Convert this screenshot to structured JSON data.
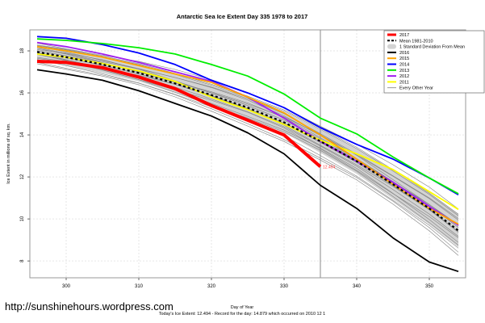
{
  "chart_data": {
    "type": "line",
    "title": "Antarctic Sea Ice Extent Day 335 1978 to 2017",
    "xlabel": "Day of Year",
    "ylabel": "Ice Extent in millions of sq. km.",
    "xlim": [
      295,
      355
    ],
    "ylim": [
      7.2,
      19.0
    ],
    "xticks": [
      300,
      310,
      320,
      330,
      340,
      350
    ],
    "yticks": [
      8,
      10,
      12,
      14,
      16,
      18
    ],
    "grid": true,
    "vline_day": 335,
    "current_label": "12.494",
    "legend_position": "top-right",
    "legend": [
      {
        "label": "2017",
        "color": "#ff0000",
        "style": "thick"
      },
      {
        "label": "Mean 1981-2010",
        "color": "#000000",
        "style": "dashed"
      },
      {
        "label": "1 Standard Deviation From Mean",
        "color": "#d3d3d3",
        "style": "band"
      },
      {
        "label": "2016",
        "color": "#000000",
        "style": "solid"
      },
      {
        "label": "2015",
        "color": "#ffa500",
        "style": "solid"
      },
      {
        "label": "2014",
        "color": "#0000ff",
        "style": "solid"
      },
      {
        "label": "2013",
        "color": "#00ee00",
        "style": "solid"
      },
      {
        "label": "2012",
        "color": "#a020f0",
        "style": "solid"
      },
      {
        "label": "2011",
        "color": "#ffff00",
        "style": "solid"
      },
      {
        "label": "Every Other Year",
        "color": "#808080",
        "style": "thin"
      }
    ],
    "x": [
      296,
      300,
      305,
      310,
      315,
      320,
      325,
      330,
      335,
      340,
      345,
      350,
      354
    ],
    "series": [
      {
        "name": "2017",
        "color": "#ff0000",
        "values": [
          17.5,
          17.45,
          17.2,
          16.75,
          16.2,
          15.4,
          14.7,
          14.0,
          12.49,
          null,
          null,
          null,
          null
        ]
      },
      {
        "name": "Mean 1981-2010",
        "color": "#000000",
        "values": [
          17.95,
          17.7,
          17.35,
          16.95,
          16.45,
          15.9,
          15.3,
          14.6,
          13.7,
          12.75,
          11.65,
          10.5,
          9.45
        ]
      },
      {
        "name": "2016",
        "color": "#000000",
        "values": [
          17.1,
          16.9,
          16.6,
          16.1,
          15.5,
          14.9,
          14.1,
          13.1,
          11.6,
          10.5,
          9.1,
          7.95,
          7.5
        ]
      },
      {
        "name": "2015",
        "color": "#ffa500",
        "values": [
          18.2,
          18.0,
          17.7,
          17.3,
          16.9,
          16.5,
          15.8,
          15.05,
          14.0,
          12.85,
          11.65,
          10.5,
          9.75
        ]
      },
      {
        "name": "2014",
        "color": "#0000ff",
        "values": [
          18.68,
          18.6,
          18.3,
          17.9,
          17.35,
          16.6,
          16.0,
          15.3,
          14.35,
          13.55,
          12.85,
          11.95,
          11.15
        ]
      },
      {
        "name": "2013",
        "color": "#00ee00",
        "values": [
          18.57,
          18.5,
          18.35,
          18.15,
          17.85,
          17.35,
          16.8,
          15.95,
          14.8,
          14.05,
          12.95,
          11.95,
          11.2
        ]
      },
      {
        "name": "2012",
        "color": "#a020f0",
        "values": [
          18.4,
          18.2,
          17.85,
          17.45,
          17.0,
          16.55,
          15.8,
          14.8,
          13.7,
          12.75,
          11.75,
          10.6,
          9.7
        ]
      },
      {
        "name": "2011",
        "color": "#ffff00",
        "values": [
          17.85,
          17.7,
          17.4,
          17.05,
          16.55,
          15.8,
          15.2,
          14.5,
          13.75,
          13.1,
          12.35,
          11.3,
          10.45
        ]
      }
    ],
    "std_band": {
      "upper": [
        18.3,
        18.1,
        17.75,
        17.35,
        16.9,
        16.35,
        15.8,
        15.1,
        14.25,
        13.35,
        12.35,
        11.25,
        10.25
      ],
      "lower": [
        17.6,
        17.3,
        16.95,
        16.55,
        16.0,
        15.45,
        14.8,
        14.1,
        13.15,
        12.15,
        10.95,
        9.75,
        8.65
      ]
    },
    "every_other_year_offsets": [
      0.7,
      0.5,
      0.35,
      0.2,
      0.1,
      0.0,
      -0.1,
      -0.2,
      -0.3,
      -0.45,
      -0.6,
      -0.8,
      0.3,
      -0.05,
      0.15,
      -0.35,
      0.55,
      -0.7
    ]
  },
  "footer": {
    "url": "http://sunshinehours.wordpress.com",
    "today_text": "Today's Ice Extent: 12.494  - Record for the day: 14.879 which occurred on 2010 12 1"
  }
}
